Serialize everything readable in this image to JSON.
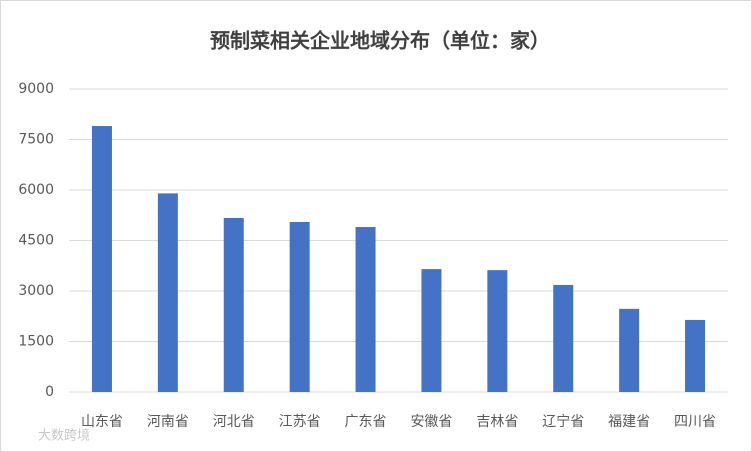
{
  "chart_data": {
    "type": "bar",
    "title": "预制菜相关企业地域分布（单位：家）",
    "categories": [
      "山东省",
      "河南省",
      "河北省",
      "江苏省",
      "广东省",
      "安徽省",
      "吉林省",
      "辽宁省",
      "福建省",
      "四川省"
    ],
    "values": [
      7900,
      5900,
      5170,
      5050,
      4900,
      3650,
      3620,
      3180,
      2470,
      2140
    ],
    "color": "#4472c4",
    "ylim": [
      0,
      9000
    ],
    "yticks": [
      0,
      1500,
      3000,
      4500,
      6000,
      7500,
      9000
    ],
    "grid": true
  },
  "watermark": "大数跨境"
}
